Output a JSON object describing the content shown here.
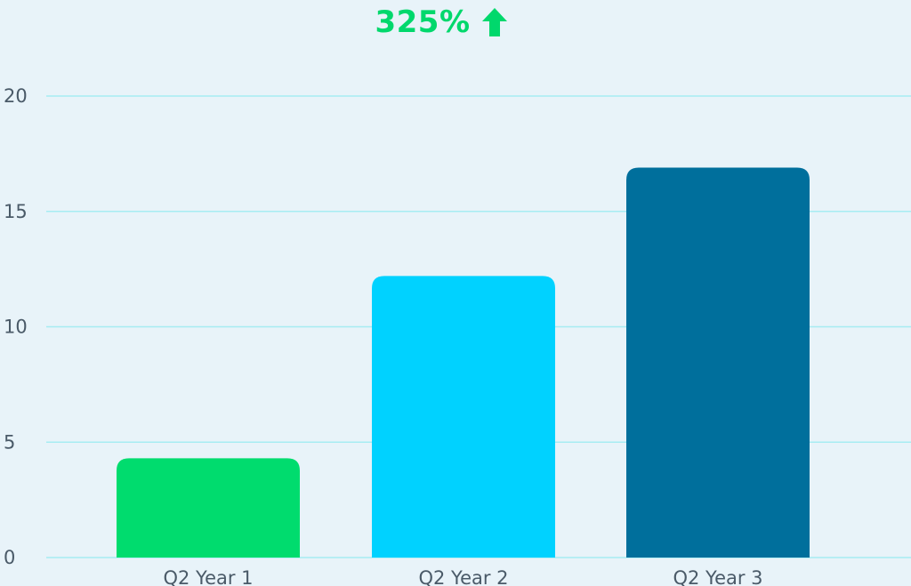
{
  "headline": {
    "value": "325%",
    "icon": "arrow-up-icon",
    "color": "#00d86c"
  },
  "chart_data": {
    "type": "bar",
    "title": "",
    "xlabel": "",
    "ylabel": "",
    "categories": [
      "Q2 Year 1",
      "Q2 Year 2",
      "Q2 Year 3"
    ],
    "values": [
      4.3,
      12.2,
      16.9
    ],
    "colors": [
      "#00dc6e",
      "#00d2ff",
      "#006f9c"
    ],
    "ylim": [
      0,
      20
    ],
    "yticks": [
      0,
      5,
      10,
      15,
      20
    ],
    "grid": true,
    "grid_color": "#a6ecf2",
    "legend": "none"
  }
}
